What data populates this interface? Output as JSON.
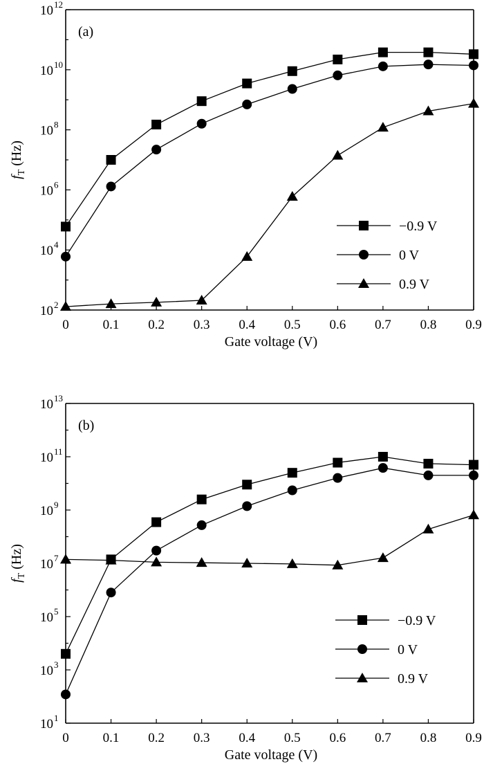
{
  "chart_data": [
    {
      "type": "line",
      "panel_label": "(a)",
      "xlabel": "Gate voltage (V)",
      "ylabel_main": "f",
      "ylabel_sub": "T",
      "ylabel_unit": " (Hz)",
      "yscale": "log",
      "x": [
        0,
        0.1,
        0.2,
        0.3,
        0.4,
        0.5,
        0.6,
        0.7,
        0.8,
        0.9
      ],
      "x_ticks": [
        "0",
        "0.1",
        "0.2",
        "0.3",
        "0.4",
        "0.5",
        "0.6",
        "0.7",
        "0.8",
        "0.9"
      ],
      "xlim": [
        0,
        0.9
      ],
      "ylim": [
        100,
        1000000000000
      ],
      "y_tick_base": "10",
      "y_tick_exponents": [
        "2",
        "4",
        "6",
        "8",
        "10",
        "12"
      ],
      "legend_position": "bottom-right",
      "series": [
        {
          "name": "−0.9 V",
          "marker": "square",
          "values": [
            60000,
            10000000,
            150000000,
            900000000,
            3500000000,
            9000000000,
            22000000000,
            38000000000,
            38000000000,
            33000000000
          ]
        },
        {
          "name": "0 V",
          "marker": "circle",
          "values": [
            6000,
            1300000,
            22000000,
            160000000,
            700000000,
            2300000000,
            6500000000,
            13000000000,
            15000000000,
            14000000000
          ]
        },
        {
          "name": "0.9 V",
          "marker": "triangle",
          "values": [
            130,
            160,
            180,
            210,
            6000,
            600000,
            14000000,
            120000000,
            420000000,
            750000000
          ]
        }
      ]
    },
    {
      "type": "line",
      "panel_label": "(b)",
      "xlabel": "Gate voltage (V)",
      "ylabel_main": "f",
      "ylabel_sub": "T",
      "ylabel_unit": " (Hz)",
      "yscale": "log",
      "x": [
        0,
        0.1,
        0.2,
        0.3,
        0.4,
        0.5,
        0.6,
        0.7,
        0.8,
        0.9
      ],
      "x_ticks": [
        "0",
        "0.1",
        "0.2",
        "0.3",
        "0.4",
        "0.5",
        "0.6",
        "0.7",
        "0.8",
        "0.9"
      ],
      "xlim": [
        0,
        0.9
      ],
      "ylim": [
        10,
        10000000000000
      ],
      "y_tick_base": "10",
      "y_tick_exponents": [
        "1",
        "3",
        "5",
        "7",
        "9",
        "11",
        "13"
      ],
      "legend_position": "bottom-right",
      "series": [
        {
          "name": "−0.9 V",
          "marker": "square",
          "values": [
            4000,
            14000000,
            350000000,
            2500000000,
            9000000000,
            25000000000,
            60000000000,
            100000000000,
            55000000000,
            50000000000
          ]
        },
        {
          "name": "0 V",
          "marker": "circle",
          "values": [
            120,
            800000,
            30000000,
            270000000,
            1400000000,
            5500000000,
            16000000000,
            38000000000,
            20000000000,
            20000000000
          ]
        },
        {
          "name": "0.9 V",
          "marker": "triangle",
          "values": [
            14000000,
            13000000,
            11000000,
            10500000,
            10000000,
            9500000,
            8500000,
            16000000,
            190000000,
            650000000
          ]
        }
      ]
    }
  ]
}
